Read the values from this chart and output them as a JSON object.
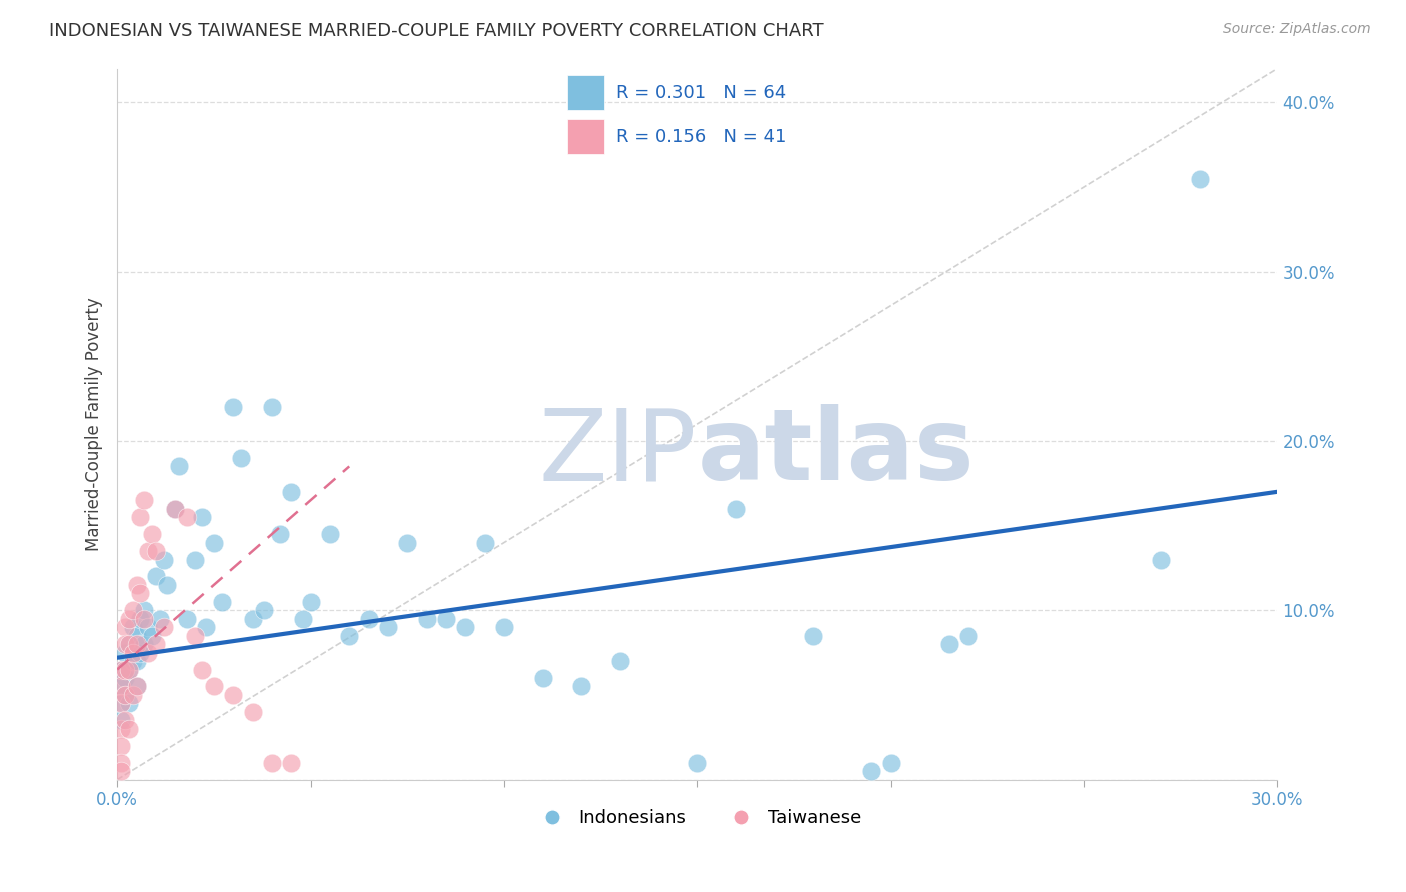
{
  "title": "INDONESIAN VS TAIWANESE MARRIED-COUPLE FAMILY POVERTY CORRELATION CHART",
  "source": "Source: ZipAtlas.com",
  "ylabel": "Married-Couple Family Poverty",
  "xlim": [
    0.0,
    0.3
  ],
  "ylim": [
    0.0,
    0.42
  ],
  "xticks": [
    0.0,
    0.05,
    0.1,
    0.15,
    0.2,
    0.25,
    0.3
  ],
  "xtick_labels": [
    "0.0%",
    "",
    "",
    "",
    "",
    "",
    "30.0%"
  ],
  "yticks": [
    0.0,
    0.1,
    0.2,
    0.3,
    0.4
  ],
  "ytick_labels": [
    "",
    "10.0%",
    "20.0%",
    "30.0%",
    "40.0%"
  ],
  "indonesian_color": "#7fbfdf",
  "taiwanese_color": "#f4a0b0",
  "indonesian_edge": "#5599cc",
  "taiwanese_edge": "#e07090",
  "indonesian_R": 0.301,
  "indonesian_N": 64,
  "taiwanese_R": 0.156,
  "taiwanese_N": 41,
  "background_color": "#ffffff",
  "grid_color": "#dddddd",
  "watermark_color": "#ccd8e8",
  "legend_label_1": "Indonesians",
  "legend_label_2": "Taiwanese",
  "indo_line_start_y": 0.072,
  "indo_line_end_y": 0.17,
  "taiwan_line_start_x": 0.0,
  "taiwan_line_start_y": 0.065,
  "taiwan_line_end_x": 0.06,
  "taiwan_line_end_y": 0.185,
  "indonesian_x": [
    0.001,
    0.001,
    0.001,
    0.001,
    0.002,
    0.002,
    0.002,
    0.003,
    0.003,
    0.003,
    0.004,
    0.004,
    0.005,
    0.005,
    0.005,
    0.006,
    0.006,
    0.007,
    0.007,
    0.008,
    0.009,
    0.01,
    0.011,
    0.012,
    0.013,
    0.015,
    0.016,
    0.018,
    0.02,
    0.022,
    0.023,
    0.025,
    0.027,
    0.03,
    0.032,
    0.035,
    0.038,
    0.04,
    0.042,
    0.045,
    0.048,
    0.05,
    0.055,
    0.06,
    0.065,
    0.07,
    0.075,
    0.08,
    0.085,
    0.09,
    0.095,
    0.1,
    0.11,
    0.12,
    0.13,
    0.15,
    0.16,
    0.18,
    0.195,
    0.2,
    0.215,
    0.22,
    0.27,
    0.28
  ],
  "indonesian_y": [
    0.065,
    0.055,
    0.045,
    0.035,
    0.075,
    0.06,
    0.05,
    0.08,
    0.065,
    0.045,
    0.09,
    0.07,
    0.085,
    0.07,
    0.055,
    0.095,
    0.075,
    0.1,
    0.08,
    0.09,
    0.085,
    0.12,
    0.095,
    0.13,
    0.115,
    0.16,
    0.185,
    0.095,
    0.13,
    0.155,
    0.09,
    0.14,
    0.105,
    0.22,
    0.19,
    0.095,
    0.1,
    0.22,
    0.145,
    0.17,
    0.095,
    0.105,
    0.145,
    0.085,
    0.095,
    0.09,
    0.14,
    0.095,
    0.095,
    0.09,
    0.14,
    0.09,
    0.06,
    0.055,
    0.07,
    0.01,
    0.16,
    0.085,
    0.005,
    0.01,
    0.08,
    0.085,
    0.13,
    0.355
  ],
  "taiwanese_x": [
    0.001,
    0.001,
    0.001,
    0.001,
    0.001,
    0.001,
    0.001,
    0.002,
    0.002,
    0.002,
    0.002,
    0.002,
    0.003,
    0.003,
    0.003,
    0.003,
    0.004,
    0.004,
    0.004,
    0.005,
    0.005,
    0.005,
    0.006,
    0.006,
    0.007,
    0.007,
    0.008,
    0.008,
    0.009,
    0.01,
    0.01,
    0.012,
    0.015,
    0.018,
    0.02,
    0.022,
    0.025,
    0.03,
    0.035,
    0.04,
    0.045
  ],
  "taiwanese_y": [
    0.065,
    0.055,
    0.045,
    0.03,
    0.02,
    0.01,
    0.005,
    0.09,
    0.08,
    0.065,
    0.05,
    0.035,
    0.095,
    0.08,
    0.065,
    0.03,
    0.1,
    0.075,
    0.05,
    0.115,
    0.08,
    0.055,
    0.155,
    0.11,
    0.165,
    0.095,
    0.135,
    0.075,
    0.145,
    0.135,
    0.08,
    0.09,
    0.16,
    0.155,
    0.085,
    0.065,
    0.055,
    0.05,
    0.04,
    0.01,
    0.01
  ]
}
